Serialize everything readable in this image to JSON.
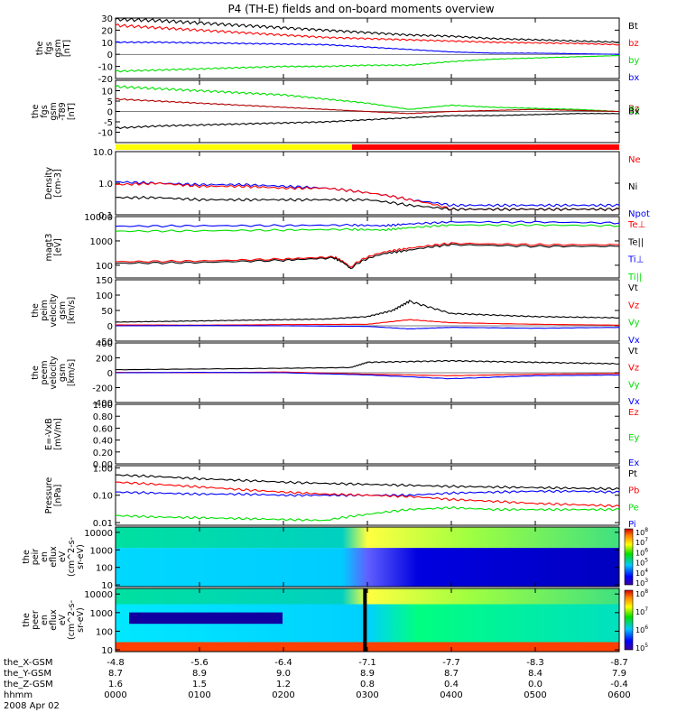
{
  "title": "P4 (TH-E) fields and on-board moments overview",
  "colors": {
    "black": "#000000",
    "red": "#ff0000",
    "green": "#00e000",
    "blue": "#0000ff",
    "darkred": "#b00000"
  },
  "time_axis": {
    "tick_x_labels": [
      "-4.8",
      "-5.6",
      "-6.4",
      "-7.1",
      "-7.7",
      "-8.3",
      "-8.7"
    ],
    "rows": [
      {
        "label": "the_X-GSM",
        "values": [
          "-4.8",
          "-5.6",
          "-6.4",
          "-7.1",
          "-7.7",
          "-8.3",
          "-8.7"
        ]
      },
      {
        "label": "the_Y-GSM",
        "values": [
          "8.7",
          "8.9",
          "9.0",
          "8.9",
          "8.7",
          "8.4",
          "7.9"
        ]
      },
      {
        "label": "the_Z-GSM",
        "values": [
          "1.6",
          "1.5",
          "1.2",
          "0.8",
          "0.4",
          "0.0",
          "-0.4"
        ]
      },
      {
        "label": "hhmm",
        "values": [
          "0000",
          "0100",
          "0200",
          "0300",
          "0400",
          "0500",
          "0600"
        ]
      }
    ],
    "date": "2008 Apr 02"
  },
  "chart_data": [
    {
      "type": "line",
      "id": "fgs",
      "ylabel": [
        "the",
        "fgs",
        "gsm",
        "[nT]"
      ],
      "ylim": [
        -20,
        30
      ],
      "yticks": [
        -20,
        -10,
        0,
        10,
        20,
        30
      ],
      "legend": [
        {
          "name": "Bt",
          "color": "#000000"
        },
        {
          "name": "bz",
          "color": "#ff0000"
        },
        {
          "name": "by",
          "color": "#00e000"
        },
        {
          "name": "bx",
          "color": "#0000ff"
        }
      ],
      "series": [
        {
          "name": "Bt",
          "color": "#000000",
          "x": [
            0,
            0.5,
            1,
            1.5,
            2,
            2.5,
            3,
            3.5,
            4,
            4.5,
            5,
            5.5,
            6
          ],
          "values": [
            29,
            28,
            26,
            24,
            22,
            20,
            18,
            16,
            15,
            13,
            12,
            11,
            10
          ]
        },
        {
          "name": "bz",
          "color": "#ff0000",
          "x": [
            0,
            0.5,
            1,
            1.5,
            2,
            2.5,
            3,
            3.5,
            4,
            4.5,
            5,
            5.5,
            6
          ],
          "values": [
            24,
            22,
            20,
            18,
            16,
            14,
            13,
            12,
            11,
            10,
            9.5,
            9,
            8
          ]
        },
        {
          "name": "by",
          "color": "#00e000",
          "x": [
            0,
            0.5,
            1,
            1.5,
            2,
            2.5,
            3,
            3.5,
            4,
            4.5,
            5,
            5.5,
            6
          ],
          "values": [
            -14,
            -13,
            -12,
            -11,
            -10,
            -10,
            -9,
            -9,
            -6,
            -4,
            -3,
            -2,
            -1
          ]
        },
        {
          "name": "bx",
          "color": "#0000ff",
          "x": [
            0,
            0.5,
            1,
            1.5,
            2,
            2.5,
            3,
            3.5,
            4,
            4.5,
            5,
            5.5,
            6
          ],
          "values": [
            10,
            10,
            9.5,
            9,
            8.5,
            8,
            6,
            4,
            2,
            1,
            1,
            0.5,
            0
          ]
        }
      ]
    },
    {
      "type": "line",
      "id": "fgs_ratio",
      "ylabel": [
        "the",
        "fgs",
        "gsm",
        "-T89",
        "[nT]"
      ],
      "ylim": [
        -15,
        15
      ],
      "yticks": [
        -10,
        -5,
        0,
        5,
        10
      ],
      "legend": [
        {
          "name": "Bz",
          "color": "#b00000"
        },
        {
          "name": "By",
          "color": "#00e000"
        },
        {
          "name": "Bx",
          "color": "#000000"
        }
      ],
      "series": [
        {
          "name": "By",
          "color": "#00e000",
          "x": [
            0,
            0.5,
            1,
            1.5,
            2,
            2.5,
            3,
            3.5,
            4,
            4.5,
            5,
            5.5,
            6
          ],
          "values": [
            12,
            11,
            10,
            9,
            8,
            6,
            4,
            1,
            3,
            2,
            1.5,
            1,
            0
          ]
        },
        {
          "name": "Bz",
          "color": "#b00000",
          "x": [
            0,
            0.5,
            1,
            1.5,
            2,
            2.5,
            3,
            3.5,
            4,
            4.5,
            5,
            5.5,
            6
          ],
          "values": [
            6,
            5,
            4,
            3,
            2,
            1,
            0,
            -1,
            0,
            0.5,
            1,
            0.5,
            0
          ]
        },
        {
          "name": "Bx",
          "color": "#000000",
          "x": [
            0,
            0.5,
            1,
            1.5,
            2,
            2.5,
            3,
            3.5,
            4,
            4.5,
            5,
            5.5,
            6
          ],
          "values": [
            -8,
            -7,
            -6.5,
            -6,
            -5.5,
            -5,
            -4,
            -3,
            -2,
            -2,
            -1.5,
            -1,
            -1
          ]
        }
      ]
    },
    {
      "type": "line",
      "id": "density",
      "ylabel": [
        "Density",
        "[cm-3]"
      ],
      "log": true,
      "ylim": [
        0.1,
        10
      ],
      "yticks": [
        0.1,
        1,
        10
      ],
      "ytick_labels": [
        "0.1",
        "1.0",
        "10.0"
      ],
      "legend": [
        {
          "name": "Ne",
          "color": "#ff0000"
        },
        {
          "name": "Ni",
          "color": "#000000"
        },
        {
          "name": "Npot",
          "color": "#0000ff"
        }
      ],
      "series": [
        {
          "name": "Npot",
          "color": "#0000ff",
          "x": [
            0,
            0.5,
            1,
            1.5,
            2,
            2.5,
            3,
            3.5,
            4,
            4.5,
            5,
            5.5,
            6
          ],
          "values": [
            1.1,
            1.0,
            0.9,
            0.9,
            0.8,
            0.7,
            0.5,
            0.3,
            0.2,
            0.2,
            0.2,
            0.2,
            0.2
          ]
        },
        {
          "name": "Ne",
          "color": "#ff0000",
          "x": [
            0,
            0.5,
            1,
            1.5,
            2,
            2.5,
            3,
            3.5,
            4,
            4.5,
            5,
            5.5,
            6
          ],
          "values": [
            0.9,
            1.0,
            0.8,
            0.8,
            0.7,
            0.7,
            0.5,
            0.3,
            0.15,
            0.15,
            0.15,
            0.15,
            0.15
          ]
        },
        {
          "name": "Ni",
          "color": "#000000",
          "x": [
            0,
            0.5,
            1,
            1.5,
            2,
            2.5,
            3,
            3.5,
            4,
            4.5,
            5,
            5.5,
            6
          ],
          "values": [
            0.35,
            0.35,
            0.3,
            0.3,
            0.3,
            0.3,
            0.3,
            0.2,
            0.15,
            0.15,
            0.15,
            0.15,
            0.15
          ]
        }
      ]
    },
    {
      "type": "line",
      "id": "temperature",
      "ylabel": [
        "magt3",
        "[eV]"
      ],
      "log": true,
      "ylim": [
        30,
        10000
      ],
      "yticks": [
        100,
        1000,
        10000
      ],
      "ytick_labels": [
        "100",
        "1000",
        "10000"
      ],
      "legend": [
        {
          "name": "Te⊥",
          "color": "#ff0000"
        },
        {
          "name": "Te||",
          "color": "#000000"
        },
        {
          "name": "Ti⊥",
          "color": "#0000ff"
        },
        {
          "name": "Ti||",
          "color": "#00e000"
        }
      ],
      "series": [
        {
          "name": "Ti⊥",
          "color": "#0000ff",
          "x": [
            0,
            1,
            2,
            2.8,
            3.2,
            3.5,
            4,
            5,
            6
          ],
          "values": [
            4000,
            4200,
            4300,
            4500,
            4200,
            5000,
            6000,
            6000,
            5500
          ]
        },
        {
          "name": "Ti||",
          "color": "#00e000",
          "x": [
            0,
            1,
            2,
            2.8,
            3.2,
            3.5,
            4,
            5,
            6
          ],
          "values": [
            2500,
            2600,
            2800,
            3000,
            2800,
            3500,
            4500,
            4500,
            4200
          ]
        },
        {
          "name": "Te⊥",
          "color": "#ff0000",
          "x": [
            0,
            1,
            2,
            2.6,
            2.8,
            3.2,
            3.5,
            4,
            5,
            6
          ],
          "values": [
            140,
            150,
            180,
            220,
            80,
            350,
            500,
            800,
            700,
            700
          ]
        },
        {
          "name": "Te||",
          "color": "#000000",
          "x": [
            0,
            1,
            2,
            2.6,
            2.8,
            3.2,
            3.5,
            4,
            5,
            6
          ],
          "values": [
            120,
            130,
            160,
            200,
            70,
            300,
            420,
            700,
            600,
            600
          ]
        }
      ]
    },
    {
      "type": "line",
      "id": "velocity_peim",
      "ylabel": [
        "the",
        "peim",
        "velocity",
        "gsm",
        "[km/s]"
      ],
      "ylim": [
        -50,
        150
      ],
      "yticks": [
        -50,
        0,
        50,
        100,
        150
      ],
      "legend": [
        {
          "name": "Vt",
          "color": "#000000"
        },
        {
          "name": "Vz",
          "color": "#ff0000"
        },
        {
          "name": "Vy",
          "color": "#00e000"
        },
        {
          "name": "Vx",
          "color": "#0000ff"
        }
      ],
      "series": [
        {
          "name": "Vt",
          "color": "#000000",
          "x": [
            0,
            0.5,
            1,
            1.5,
            2,
            2.5,
            3,
            3.3,
            3.5,
            4,
            4.5,
            5,
            5.5,
            6
          ],
          "values": [
            12,
            14,
            16,
            18,
            20,
            22,
            30,
            50,
            80,
            40,
            35,
            30,
            28,
            26
          ]
        },
        {
          "name": "Vz",
          "color": "#ff0000",
          "x": [
            0,
            1,
            2,
            3,
            3.5,
            4,
            5,
            6
          ],
          "values": [
            3,
            2,
            4,
            5,
            20,
            10,
            5,
            2
          ]
        },
        {
          "name": "Vx",
          "color": "#0000ff",
          "x": [
            0,
            1,
            2,
            3,
            3.5,
            4,
            5,
            6
          ],
          "values": [
            0,
            1,
            0,
            -2,
            -10,
            -5,
            -8,
            -5
          ]
        }
      ]
    },
    {
      "type": "line",
      "id": "velocity_peer",
      "ylabel": [
        "the",
        "peem",
        "velocity",
        "gsm",
        "[km/s]"
      ],
      "ylim": [
        -400,
        400
      ],
      "yticks": [
        -400,
        -200,
        0,
        200,
        400
      ],
      "legend": [
        {
          "name": "Vt",
          "color": "#000000"
        },
        {
          "name": "Vz",
          "color": "#ff0000"
        },
        {
          "name": "Vy",
          "color": "#00e000"
        },
        {
          "name": "Vx",
          "color": "#0000ff"
        }
      ],
      "series": [
        {
          "name": "Vt",
          "color": "#000000",
          "x": [
            0,
            1,
            2,
            2.8,
            3,
            3.5,
            4,
            4.5,
            5,
            5.5,
            6
          ],
          "values": [
            40,
            50,
            60,
            70,
            140,
            150,
            160,
            150,
            140,
            130,
            120
          ]
        },
        {
          "name": "Vz",
          "color": "#ff0000",
          "x": [
            0,
            1,
            2,
            3,
            4,
            5,
            6
          ],
          "values": [
            5,
            0,
            10,
            -20,
            -40,
            -20,
            -10
          ]
        },
        {
          "name": "Vx",
          "color": "#0000ff",
          "x": [
            0,
            1,
            2,
            3,
            4,
            5,
            6
          ],
          "values": [
            0,
            5,
            0,
            -30,
            -80,
            -40,
            -30
          ]
        }
      ]
    },
    {
      "type": "line",
      "id": "efield",
      "ylabel": [
        "E=-VxB",
        "[mV/m]"
      ],
      "ylim": [
        0,
        1
      ],
      "yticks": [
        0,
        0.2,
        0.4,
        0.6,
        0.8,
        1.0
      ],
      "ytick_labels": [
        "0.00",
        "0.20",
        "0.40",
        "0.60",
        "0.80",
        "1.00"
      ],
      "legend": [
        {
          "name": "Ez",
          "color": "#ff0000"
        },
        {
          "name": "Ey",
          "color": "#00e000"
        },
        {
          "name": "Ex",
          "color": "#0000ff"
        }
      ],
      "series": []
    },
    {
      "type": "line",
      "id": "pressure",
      "ylabel": [
        "Pressure",
        "[nPa]"
      ],
      "log": true,
      "ylim": [
        0.008,
        1.2
      ],
      "yticks": [
        0.01,
        0.1,
        1
      ],
      "ytick_labels": [
        "0.01",
        "0.10",
        "1.00"
      ],
      "legend": [
        {
          "name": "Pt",
          "color": "#000000"
        },
        {
          "name": "Pb",
          "color": "#ff0000"
        },
        {
          "name": "Pe",
          "color": "#00e000"
        },
        {
          "name": "Pi",
          "color": "#0000ff"
        }
      ],
      "series": [
        {
          "name": "Pt",
          "color": "#000000",
          "x": [
            0,
            0.5,
            1,
            1.5,
            2,
            2.5,
            3,
            3.5,
            4,
            4.5,
            5,
            5.5,
            6
          ],
          "values": [
            0.55,
            0.48,
            0.4,
            0.35,
            0.3,
            0.27,
            0.25,
            0.23,
            0.21,
            0.2,
            0.19,
            0.18,
            0.17
          ]
        },
        {
          "name": "Pi",
          "color": "#0000ff",
          "x": [
            0,
            0.5,
            1,
            1.5,
            2,
            2.5,
            3,
            3.5,
            4,
            4.5,
            5,
            5.5,
            6
          ],
          "values": [
            0.13,
            0.12,
            0.11,
            0.11,
            0.1,
            0.1,
            0.1,
            0.1,
            0.12,
            0.13,
            0.14,
            0.14,
            0.13
          ]
        },
        {
          "name": "Pb",
          "color": "#ff0000",
          "x": [
            0,
            0.5,
            1,
            1.5,
            2,
            2.5,
            3,
            3.5,
            4,
            4.5,
            5,
            5.5,
            6
          ],
          "values": [
            0.3,
            0.25,
            0.2,
            0.16,
            0.13,
            0.11,
            0.1,
            0.09,
            0.07,
            0.06,
            0.05,
            0.045,
            0.04
          ]
        },
        {
          "name": "Pe",
          "color": "#00e000",
          "x": [
            0,
            0.5,
            1,
            1.5,
            2,
            2.5,
            3,
            3.5,
            4,
            4.5,
            5,
            5.5,
            6
          ],
          "values": [
            0.018,
            0.016,
            0.015,
            0.014,
            0.013,
            0.012,
            0.02,
            0.03,
            0.035,
            0.03,
            0.03,
            0.03,
            0.03
          ]
        }
      ]
    },
    {
      "type": "heatmap",
      "id": "peir",
      "ylabel": [
        "the",
        "peir",
        "en",
        "eflux",
        "eV",
        "(cm^2-s-",
        "sr-eV)"
      ],
      "log": true,
      "ylim": [
        8,
        20000
      ],
      "yticks": [
        10,
        100,
        1000,
        10000
      ],
      "ytick_labels": [
        "10",
        "100",
        "1000",
        "10000"
      ],
      "colorbar_labels": [
        "10^8",
        "10^7",
        "10^6",
        "10^5",
        "10^4",
        "10^3"
      ]
    },
    {
      "type": "heatmap",
      "id": "peer",
      "ylabel": [
        "the",
        "peer",
        "en",
        "eflux",
        "eV",
        "(cm^2-s-",
        "sr-eV)"
      ],
      "log": true,
      "ylim": [
        8,
        20000
      ],
      "yticks": [
        10,
        100,
        1000,
        10000
      ],
      "ytick_labels": [
        "10",
        "100",
        "1000",
        "10000"
      ],
      "colorbar_labels": [
        "10^8",
        "10^7",
        "10^6",
        "10^5"
      ]
    }
  ]
}
